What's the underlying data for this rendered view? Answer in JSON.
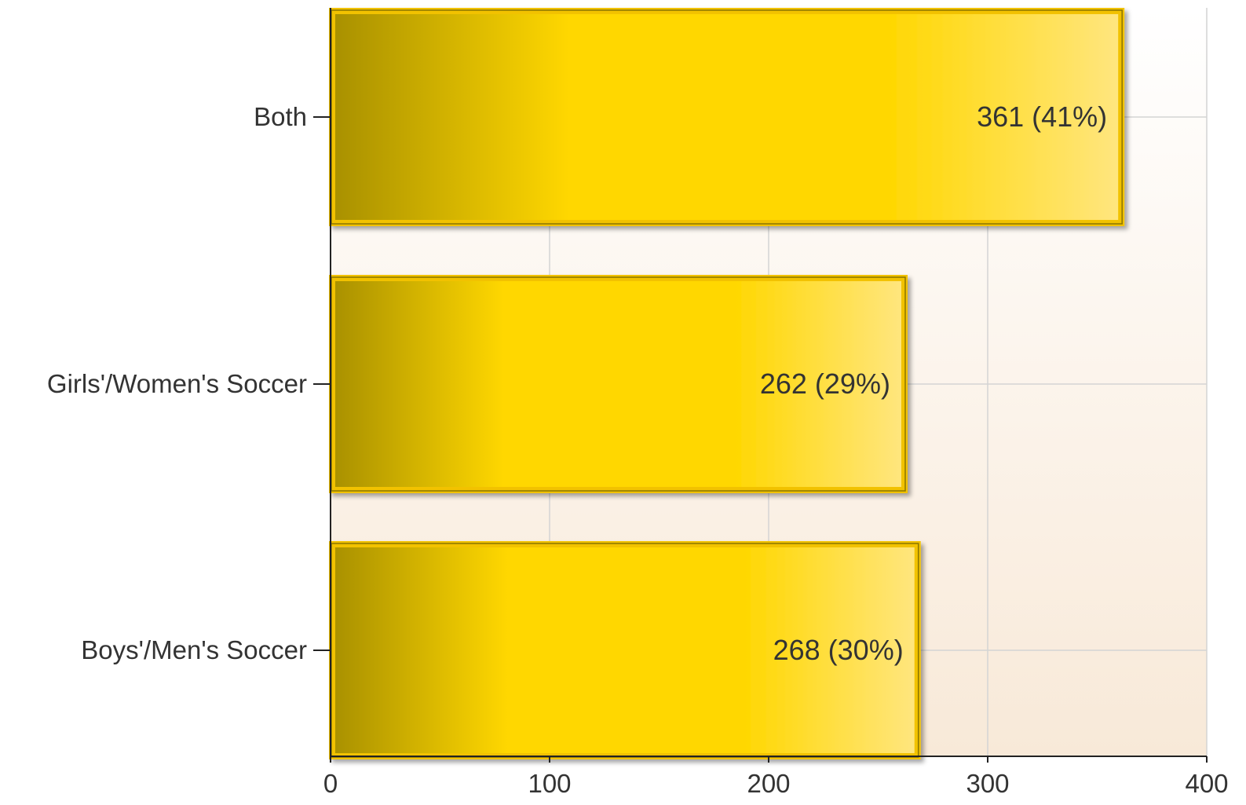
{
  "chart_data": {
    "type": "bar",
    "orientation": "horizontal",
    "categories": [
      "Both",
      "Girls'/Women's Soccer",
      "Boys'/Men's Soccer"
    ],
    "values": [
      361,
      262,
      268
    ],
    "data_labels": [
      "361 (41%)",
      "262 (29%)",
      "268 (30%)"
    ],
    "xlim": [
      0,
      400
    ],
    "xticks": [
      0,
      100,
      200,
      300,
      400
    ],
    "xtick_labels": [
      "0",
      "100",
      "200",
      "300",
      "400"
    ],
    "title": "",
    "xlabel": "",
    "ylabel": "",
    "grid": true,
    "legend": "none",
    "colors": {
      "bar_dark": "#a89000",
      "bar_main": "#ffd700",
      "bar_light": "#ffe680",
      "bar_border": "#f2c200",
      "background_top": "#ffffff",
      "background_bottom": "#f8e9d8"
    }
  }
}
